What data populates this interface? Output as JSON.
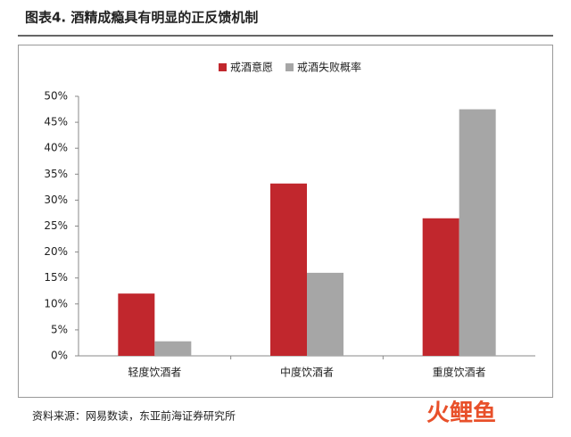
{
  "chart_data": {
    "type": "bar",
    "title": "图表4.   酒精成瘾具有明显的正反馈机制",
    "categories": [
      "轻度饮酒者",
      "中度饮酒者",
      "重度饮酒者"
    ],
    "series": [
      {
        "name": "戒酒意愿",
        "color": "#c1272d",
        "values": [
          12,
          33.2,
          26.5
        ]
      },
      {
        "name": "戒酒失败概率",
        "color": "#a6a6a6",
        "values": [
          2.8,
          16,
          47.5
        ]
      }
    ],
    "ylim": [
      0,
      50
    ],
    "yticks": [
      {
        "value": 0,
        "label": "0%"
      },
      {
        "value": 5,
        "label": "5%"
      },
      {
        "value": 10,
        "label": "10%"
      },
      {
        "value": 15,
        "label": "15%"
      },
      {
        "value": 20,
        "label": "20%"
      },
      {
        "value": 25,
        "label": "25%"
      },
      {
        "value": 30,
        "label": "30%"
      },
      {
        "value": 35,
        "label": "35%"
      },
      {
        "value": 40,
        "label": "40%"
      },
      {
        "value": 45,
        "label": "45%"
      },
      {
        "value": 50,
        "label": "50%"
      }
    ],
    "legend": "top",
    "source": "资料来源：网易数读，东亚前海证券研究所",
    "watermark": "火鲤鱼"
  }
}
